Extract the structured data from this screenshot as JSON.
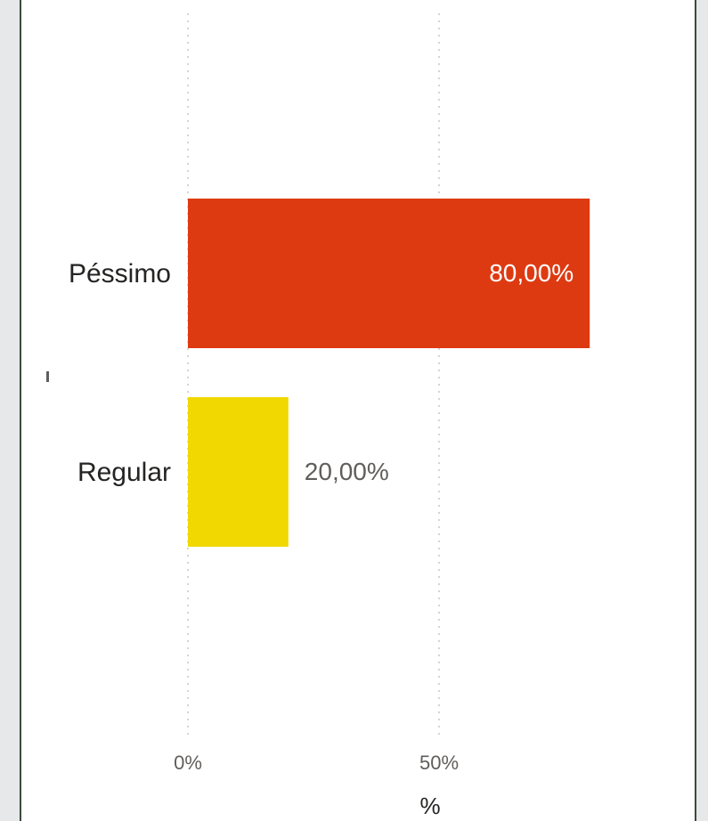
{
  "chart_data": {
    "type": "bar",
    "orientation": "horizontal",
    "categories": [
      "Péssimo",
      "Regular"
    ],
    "values": [
      80.0,
      20.0
    ],
    "data_labels": [
      "80,00%",
      "20,00%"
    ],
    "colors": [
      "#de3a12",
      "#f0d800"
    ],
    "xlabel": "%",
    "ylabel": "",
    "xlim": [
      0,
      100
    ],
    "x_ticks": [
      {
        "value": 0,
        "label": "0%"
      },
      {
        "value": 50,
        "label": "50%"
      }
    ],
    "grid": true
  }
}
